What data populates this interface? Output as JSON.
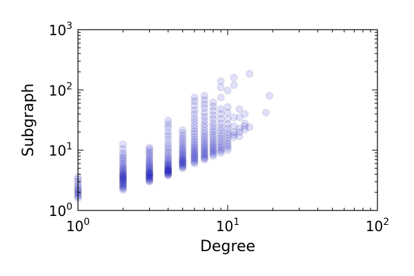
{
  "chart_data": {
    "type": "scatter",
    "title": "",
    "xlabel": "Degree",
    "ylabel": "Subgraph",
    "xscale": "log",
    "yscale": "log",
    "xlim": [
      1,
      100
    ],
    "ylim": [
      1,
      1000
    ],
    "x_ticks": [
      {
        "base": "10",
        "exp": "0",
        "value": 1
      },
      {
        "base": "10",
        "exp": "1",
        "value": 10
      },
      {
        "base": "10",
        "exp": "2",
        "value": 100
      }
    ],
    "y_ticks": [
      {
        "base": "10",
        "exp": "0",
        "value": 1
      },
      {
        "base": "10",
        "exp": "1",
        "value": 10
      },
      {
        "base": "10",
        "exp": "2",
        "value": 100
      },
      {
        "base": "10",
        "exp": "3",
        "value": 1000
      }
    ],
    "grid": false,
    "marker_color": "#0000cc",
    "marker_edge_color": "#000066",
    "marker_alpha": 0.12,
    "points": [
      [
        1,
        1.6
      ],
      [
        1,
        1.7
      ],
      [
        1,
        1.8
      ],
      [
        1,
        1.9
      ],
      [
        1,
        2.0
      ],
      [
        1,
        2.1
      ],
      [
        1,
        2.2
      ],
      [
        1,
        2.3
      ],
      [
        1,
        2.5
      ],
      [
        1,
        2.7
      ],
      [
        1,
        3.0
      ],
      [
        1,
        3.3
      ],
      [
        1,
        3.6
      ],
      [
        2,
        2.2
      ],
      [
        2,
        2.3
      ],
      [
        2,
        2.4
      ],
      [
        2,
        2.5
      ],
      [
        2,
        2.6
      ],
      [
        2,
        2.7
      ],
      [
        2,
        2.8
      ],
      [
        2,
        2.9
      ],
      [
        2,
        3.0
      ],
      [
        2,
        3.1
      ],
      [
        2,
        3.2
      ],
      [
        2,
        3.3
      ],
      [
        2,
        3.4
      ],
      [
        2,
        3.5
      ],
      [
        2,
        3.6
      ],
      [
        2,
        3.7
      ],
      [
        2,
        3.8
      ],
      [
        2,
        3.9
      ],
      [
        2,
        4.0
      ],
      [
        2,
        4.2
      ],
      [
        2,
        4.4
      ],
      [
        2,
        4.6
      ],
      [
        2,
        4.8
      ],
      [
        2,
        5.0
      ],
      [
        2,
        5.3
      ],
      [
        2,
        5.6
      ],
      [
        2,
        6.0
      ],
      [
        2,
        6.5
      ],
      [
        2,
        7.0
      ],
      [
        2,
        7.5
      ],
      [
        2,
        8.2
      ],
      [
        2,
        9.0
      ],
      [
        2,
        10.5
      ],
      [
        2,
        12.5
      ],
      [
        3,
        3.0
      ],
      [
        3,
        3.1
      ],
      [
        3,
        3.2
      ],
      [
        3,
        3.3
      ],
      [
        3,
        3.4
      ],
      [
        3,
        3.5
      ],
      [
        3,
        3.6
      ],
      [
        3,
        3.7
      ],
      [
        3,
        3.8
      ],
      [
        3,
        3.9
      ],
      [
        3,
        4.0
      ],
      [
        3,
        4.1
      ],
      [
        3,
        4.2
      ],
      [
        3,
        4.3
      ],
      [
        3,
        4.4
      ],
      [
        3,
        4.6
      ],
      [
        3,
        4.8
      ],
      [
        3,
        5.0
      ],
      [
        3,
        5.2
      ],
      [
        3,
        5.4
      ],
      [
        3,
        5.7
      ],
      [
        3,
        6.0
      ],
      [
        3,
        6.3
      ],
      [
        3,
        6.7
      ],
      [
        3,
        7.1
      ],
      [
        3,
        7.6
      ],
      [
        3,
        8.2
      ],
      [
        3,
        8.8
      ],
      [
        3,
        9.5
      ],
      [
        3,
        10.3
      ],
      [
        3,
        11.0
      ],
      [
        4,
        3.8
      ],
      [
        4,
        3.9
      ],
      [
        4,
        4.0
      ],
      [
        4,
        4.1
      ],
      [
        4,
        4.2
      ],
      [
        4,
        4.3
      ],
      [
        4,
        4.4
      ],
      [
        4,
        4.5
      ],
      [
        4,
        4.6
      ],
      [
        4,
        4.7
      ],
      [
        4,
        4.8
      ],
      [
        4,
        4.9
      ],
      [
        4,
        5.0
      ],
      [
        4,
        5.2
      ],
      [
        4,
        5.4
      ],
      [
        4,
        5.6
      ],
      [
        4,
        5.8
      ],
      [
        4,
        6.0
      ],
      [
        4,
        6.3
      ],
      [
        4,
        6.6
      ],
      [
        4,
        7.0
      ],
      [
        4,
        7.5
      ],
      [
        4,
        8.0
      ],
      [
        4,
        8.7
      ],
      [
        4,
        9.5
      ],
      [
        4,
        10.5
      ],
      [
        4,
        11.5
      ],
      [
        4,
        13.0
      ],
      [
        4,
        15.0
      ],
      [
        4,
        17.5
      ],
      [
        4,
        20.0
      ],
      [
        4,
        24.0
      ],
      [
        4,
        27.0
      ],
      [
        4,
        31.0
      ],
      [
        5,
        5.0
      ],
      [
        5,
        5.2
      ],
      [
        5,
        5.4
      ],
      [
        5,
        5.6
      ],
      [
        5,
        5.8
      ],
      [
        5,
        6.0
      ],
      [
        5,
        6.2
      ],
      [
        5,
        6.4
      ],
      [
        5,
        6.6
      ],
      [
        5,
        6.8
      ],
      [
        5,
        7.0
      ],
      [
        5,
        7.3
      ],
      [
        5,
        7.6
      ],
      [
        5,
        8.0
      ],
      [
        5,
        8.4
      ],
      [
        5,
        8.8
      ],
      [
        5,
        9.3
      ],
      [
        5,
        9.9
      ],
      [
        5,
        10.5
      ],
      [
        5,
        11.2
      ],
      [
        5,
        12.0
      ],
      [
        5,
        13.0
      ],
      [
        5,
        14.2
      ],
      [
        5,
        15.5
      ],
      [
        5,
        17.0
      ],
      [
        5,
        19.0
      ],
      [
        5,
        21.5
      ],
      [
        6,
        6.0
      ],
      [
        6,
        6.3
      ],
      [
        6,
        6.6
      ],
      [
        6,
        7.0
      ],
      [
        6,
        7.3
      ],
      [
        6,
        7.6
      ],
      [
        6,
        8.0
      ],
      [
        6,
        8.4
      ],
      [
        6,
        8.8
      ],
      [
        6,
        9.3
      ],
      [
        6,
        9.8
      ],
      [
        6,
        10.4
      ],
      [
        6,
        11.0
      ],
      [
        6,
        11.8
      ],
      [
        6,
        12.7
      ],
      [
        6,
        13.8
      ],
      [
        6,
        15.0
      ],
      [
        6,
        16.5
      ],
      [
        6,
        18.5
      ],
      [
        6,
        20.5
      ],
      [
        6,
        23.0
      ],
      [
        6,
        26.0
      ],
      [
        6,
        30.0
      ],
      [
        6,
        34.0
      ],
      [
        6,
        40.0
      ],
      [
        6,
        46.0
      ],
      [
        6,
        55.0
      ],
      [
        6,
        65.0
      ],
      [
        6,
        75.0
      ],
      [
        7,
        7.0
      ],
      [
        7,
        7.3
      ],
      [
        7,
        7.6
      ],
      [
        7,
        8.0
      ],
      [
        7,
        8.4
      ],
      [
        7,
        8.8
      ],
      [
        7,
        9.3
      ],
      [
        7,
        9.8
      ],
      [
        7,
        10.4
      ],
      [
        7,
        11.0
      ],
      [
        7,
        11.7
      ],
      [
        7,
        12.5
      ],
      [
        7,
        13.4
      ],
      [
        7,
        14.5
      ],
      [
        7,
        15.8
      ],
      [
        7,
        17.2
      ],
      [
        7,
        19.0
      ],
      [
        7,
        21.0
      ],
      [
        7,
        24.0
      ],
      [
        7,
        27.0
      ],
      [
        7,
        31.0
      ],
      [
        7,
        36.0
      ],
      [
        7,
        42.0
      ],
      [
        7,
        50.0
      ],
      [
        7,
        58.0
      ],
      [
        7,
        68.0
      ],
      [
        7,
        80.0
      ],
      [
        8,
        8.0
      ],
      [
        8,
        8.5
      ],
      [
        8,
        9.0
      ],
      [
        8,
        9.5
      ],
      [
        8,
        10.0
      ],
      [
        8,
        10.6
      ],
      [
        8,
        11.2
      ],
      [
        8,
        12.0
      ],
      [
        8,
        12.8
      ],
      [
        8,
        13.8
      ],
      [
        8,
        15.0
      ],
      [
        8,
        16.5
      ],
      [
        8,
        18.0
      ],
      [
        8,
        20.0
      ],
      [
        8,
        22.0
      ],
      [
        8,
        25.0
      ],
      [
        8,
        28.0
      ],
      [
        8,
        33.0
      ],
      [
        8,
        38.0
      ],
      [
        8,
        45.0
      ],
      [
        8,
        53.0
      ],
      [
        8,
        62.0
      ],
      [
        9,
        9.0
      ],
      [
        9,
        9.6
      ],
      [
        9,
        10.2
      ],
      [
        9,
        11.0
      ],
      [
        9,
        11.8
      ],
      [
        9,
        12.8
      ],
      [
        9,
        14.0
      ],
      [
        9,
        15.5
      ],
      [
        9,
        17.0
      ],
      [
        9,
        19.0
      ],
      [
        9,
        21.5
      ],
      [
        9,
        24.0
      ],
      [
        9,
        28.0
      ],
      [
        9,
        33.0
      ],
      [
        9,
        40.0
      ],
      [
        9,
        48.0
      ],
      [
        9,
        75.0
      ],
      [
        9,
        110.0
      ],
      [
        9,
        140.0
      ],
      [
        10,
        10.0
      ],
      [
        10,
        11.0
      ],
      [
        10,
        12.0
      ],
      [
        10,
        13.0
      ],
      [
        10,
        14.5
      ],
      [
        10,
        16.0
      ],
      [
        10,
        18.0
      ],
      [
        10,
        20.0
      ],
      [
        10,
        23.0
      ],
      [
        10,
        27.0
      ],
      [
        10,
        33.0
      ],
      [
        10,
        42.0
      ],
      [
        10,
        52.0
      ],
      [
        10,
        98.0
      ],
      [
        11,
        16.5
      ],
      [
        11,
        18.0
      ],
      [
        11,
        20.0
      ],
      [
        11,
        25.0
      ],
      [
        11,
        35.0
      ],
      [
        11,
        120.0
      ],
      [
        11,
        160.0
      ],
      [
        12,
        17.0
      ],
      [
        12,
        20.0
      ],
      [
        12,
        23.0
      ],
      [
        12,
        35.0
      ],
      [
        12,
        48.0
      ],
      [
        13,
        22.0
      ],
      [
        13,
        25.0
      ],
      [
        13,
        28.0
      ],
      [
        13,
        40.0
      ],
      [
        14,
        24.0
      ],
      [
        14,
        185.0
      ],
      [
        18,
        42.0
      ],
      [
        19,
        80.0
      ]
    ]
  }
}
